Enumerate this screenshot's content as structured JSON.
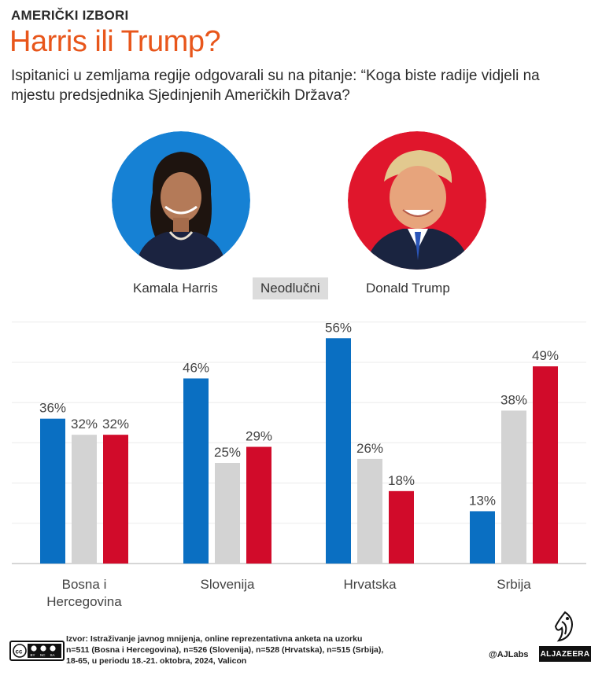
{
  "header": {
    "kicker": "AMERIČKI IZBORI",
    "title": "Harris ili Trump?",
    "subtitle": "Ispitanici u zemljama regije odgovarali su na pitanje: “Koga biste radije vidjeli na mjestu predsjednika Sjedinjenih Američkih Država?"
  },
  "legend": {
    "harris": "Kamala Harris",
    "undecided": "Neodlučni",
    "trump": "Donald Trump"
  },
  "colors": {
    "harris": "#0a6fc2",
    "undecided": "#d3d3d3",
    "trump": "#d10b2a",
    "title": "#e8561b",
    "harris_circle": "#1681d4",
    "trump_circle": "#e0162c"
  },
  "icons": {
    "harris": "harris-portrait",
    "trump": "trump-portrait",
    "license": "creative-commons-icon",
    "brand": "al-jazeera-emblem"
  },
  "chart_data": {
    "type": "bar",
    "categories": [
      "Bosna i Hercegovina",
      "Slovenija",
      "Hrvatska",
      "Srbija"
    ],
    "series": [
      {
        "name": "Kamala Harris",
        "values": [
          36,
          46,
          56,
          13
        ]
      },
      {
        "name": "Neodlučni",
        "values": [
          32,
          25,
          26,
          38
        ]
      },
      {
        "name": "Donald Trump",
        "values": [
          32,
          29,
          18,
          49
        ]
      }
    ],
    "value_labels": [
      [
        "36%",
        "46%",
        "56%",
        "13%"
      ],
      [
        "32%",
        "25%",
        "26%",
        "38%"
      ],
      [
        "32%",
        "29%",
        "18%",
        "49%"
      ]
    ],
    "ylim": [
      0,
      60
    ],
    "grid": true,
    "legend_placement": "top"
  },
  "footer": {
    "license_text": "cc BY NC SA",
    "source_line1": "Izvor: Istraživanje javnog mnijenja, online reprezentativna anketa na uzorku",
    "source_line2": "n=511 (Bosna i Hercegovina), n=526 (Slovenija), n=528 (Hrvatska), n=515 (Srbija),",
    "source_line3": "18-65, u periodu 18.-21. oktobra, 2024, Valicon",
    "handle": "@AJLabs",
    "brand": "ALJAZEERA"
  }
}
